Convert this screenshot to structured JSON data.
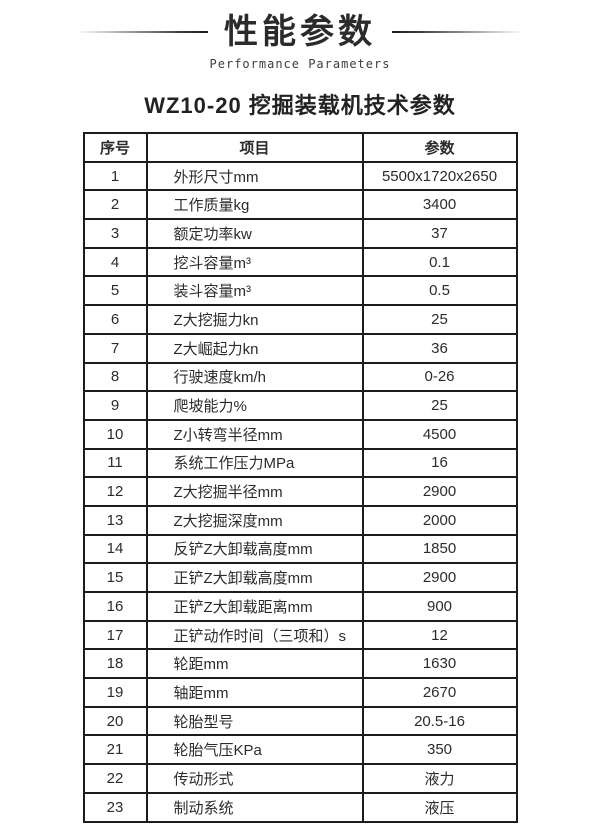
{
  "header": {
    "title": "性能参数",
    "subtitle": "Performance Parameters"
  },
  "section_title": "WZ10-20 挖掘装载机技术参数",
  "table": {
    "columns": [
      "序号",
      "项目",
      "参数"
    ],
    "rows": [
      {
        "no": "1",
        "item": "外形尺寸mm",
        "value": "5500x1720x2650"
      },
      {
        "no": "2",
        "item": "工作质量kg",
        "value": "3400"
      },
      {
        "no": "3",
        "item": "额定功率kw",
        "value": "37"
      },
      {
        "no": "4",
        "item": "挖斗容量m³",
        "value": "0.1"
      },
      {
        "no": "5",
        "item": "装斗容量m³",
        "value": "0.5"
      },
      {
        "no": "6",
        "item": "Z大挖掘力kn",
        "value": "25"
      },
      {
        "no": "7",
        "item": "Z大崛起力kn",
        "value": "36"
      },
      {
        "no": "8",
        "item": "行驶速度km/h",
        "value": "0-26"
      },
      {
        "no": "9",
        "item": "爬坡能力%",
        "value": "25"
      },
      {
        "no": "10",
        "item": "Z小转弯半径mm",
        "value": "4500"
      },
      {
        "no": "11",
        "item": "系统工作压力MPa",
        "value": "16"
      },
      {
        "no": "12",
        "item": "Z大挖掘半径mm",
        "value": "2900"
      },
      {
        "no": "13",
        "item": "Z大挖掘深度mm",
        "value": "2000"
      },
      {
        "no": "14",
        "item": "反铲Z大卸载高度mm",
        "value": "1850"
      },
      {
        "no": "15",
        "item": "正铲Z大卸载高度mm",
        "value": "2900"
      },
      {
        "no": "16",
        "item": "正铲Z大卸载距离mm",
        "value": "900"
      },
      {
        "no": "17",
        "item": "正铲动作时间（三项和）s",
        "value": "12"
      },
      {
        "no": "18",
        "item": "轮距mm",
        "value": "1630"
      },
      {
        "no": "19",
        "item": "轴距mm",
        "value": "2670"
      },
      {
        "no": "20",
        "item": "轮胎型号",
        "value": "20.5-16"
      },
      {
        "no": "21",
        "item": "轮胎气压KPa",
        "value": "350"
      },
      {
        "no": "22",
        "item": "传动形式",
        "value": "液力"
      },
      {
        "no": "23",
        "item": "制动系统",
        "value": "液压"
      }
    ]
  },
  "colors": {
    "text": "#2b2b2b",
    "border": "#1c1c1c",
    "subtitle_text": "#3d3d3d"
  }
}
